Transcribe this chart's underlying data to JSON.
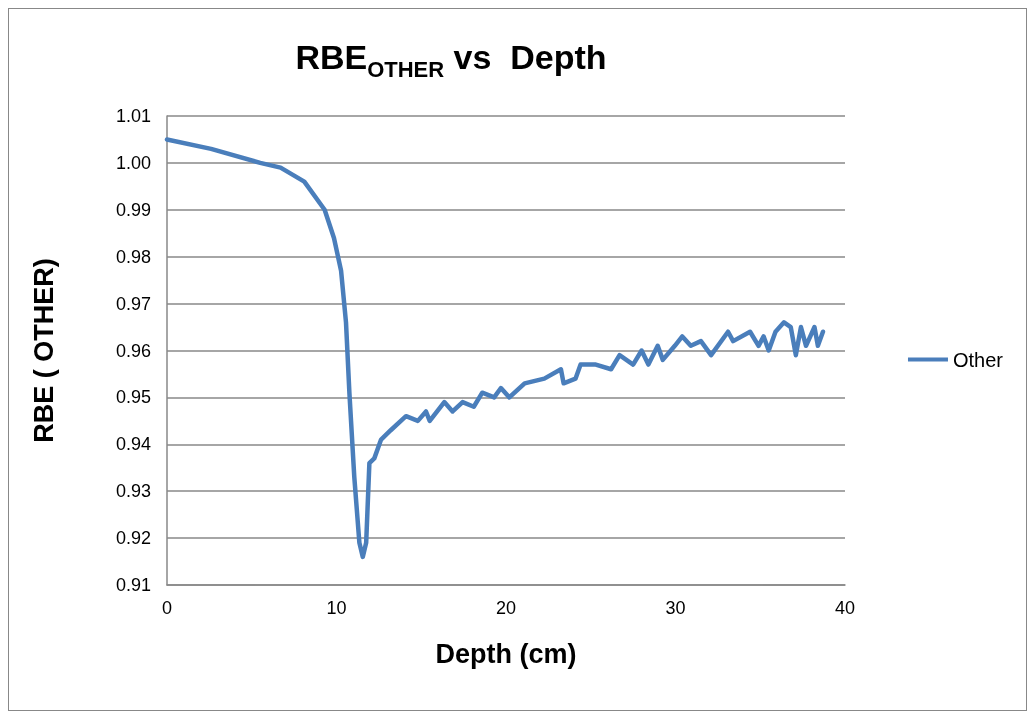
{
  "chart_data": {
    "type": "line",
    "title": "RBE$_{OTHER}$ vs  Depth",
    "xlabel": "Depth (cm)",
    "ylabel": "RBE ( OTHER)",
    "xlim": [
      0,
      40
    ],
    "xticks": [
      0,
      10,
      20,
      30,
      40
    ],
    "ylim": [
      0.91,
      1.01
    ],
    "yticks": [
      0.91,
      0.92,
      0.93,
      0.94,
      0.95,
      0.96,
      0.97,
      0.98,
      0.99,
      {
        "value": 1.0,
        "label": "1.00"
      },
      1.01
    ],
    "grid": "y",
    "legend": "right",
    "marker": "none",
    "line_style": "solid",
    "series": [
      {
        "name": "Other",
        "color": "#4a7ebb",
        "x": [
          0,
          2.6,
          5.5,
          6.7,
          8.1,
          9.3,
          9.85,
          10.27,
          10.56,
          10.76,
          11.05,
          11.35,
          11.55,
          11.75,
          11.94,
          12.23,
          12.63,
          13.2,
          14.1,
          14.8,
          15.28,
          15.5,
          16.36,
          16.85,
          17.44,
          18.1,
          18.6,
          19.3,
          19.7,
          20.2,
          21.1,
          22.26,
          23.24,
          23.4,
          24.1,
          24.4,
          25.3,
          26.2,
          26.7,
          27.5,
          28.0,
          28.4,
          28.95,
          29.25,
          29.96,
          30.4,
          30.9,
          31.5,
          32.1,
          33.1,
          33.4,
          34.4,
          34.9,
          35.2,
          35.5,
          35.9,
          36.4,
          36.8,
          37.1,
          37.4,
          37.7,
          38.2,
          38.4,
          38.7
        ],
        "values": [
          1.005,
          1.003,
          1.0,
          0.999,
          0.996,
          0.99,
          0.984,
          0.977,
          0.966,
          0.951,
          0.933,
          0.919,
          0.916,
          0.919,
          0.936,
          0.937,
          0.941,
          0.943,
          0.946,
          0.945,
          0.947,
          0.945,
          0.949,
          0.947,
          0.949,
          0.948,
          0.951,
          0.95,
          0.952,
          0.95,
          0.953,
          0.954,
          0.956,
          0.953,
          0.954,
          0.957,
          0.957,
          0.956,
          0.959,
          0.957,
          0.96,
          0.957,
          0.961,
          0.958,
          0.961,
          0.963,
          0.961,
          0.962,
          0.959,
          0.964,
          0.962,
          0.964,
          0.961,
          0.963,
          0.96,
          0.964,
          0.966,
          0.965,
          0.959,
          0.965,
          0.961,
          0.965,
          0.961,
          0.964
        ]
      }
    ]
  }
}
